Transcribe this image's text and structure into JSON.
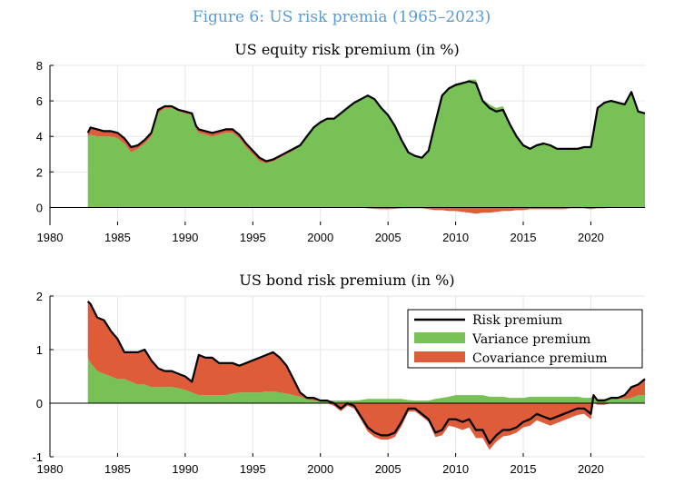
{
  "figure": {
    "title": "Figure 6: US risk premia (1965–2023)"
  },
  "colors": {
    "risk": "#000000",
    "variance": "#77c156",
    "covariance": "#de5c3a",
    "title": "#5b9bd5",
    "grid": "#e6e6e6"
  },
  "chart_data": [
    {
      "type": "area",
      "title": "US equity risk premium (in %)",
      "xlim": [
        1980,
        2024
      ],
      "ylim": [
        -1,
        8
      ],
      "xticks": [
        1980,
        1985,
        1990,
        1995,
        2000,
        2005,
        2010,
        2015,
        2020
      ],
      "xtick_labels": [
        "1980",
        "1985",
        "1990",
        "1995",
        "2000",
        "2005",
        "2010",
        "2015",
        "2020"
      ],
      "yticks": [
        0,
        2,
        4,
        6,
        8
      ],
      "ytick_labels": [
        "0",
        "2",
        "4",
        "6",
        "8"
      ],
      "grid": true,
      "x": [
        1982.8,
        1983,
        1983.5,
        1984,
        1984.5,
        1985,
        1985.5,
        1986,
        1986.5,
        1987,
        1987.5,
        1988,
        1988.5,
        1989,
        1989.5,
        1990,
        1990.5,
        1990.8,
        1991,
        1991.5,
        1992,
        1992.5,
        1993,
        1993.5,
        1994,
        1994.5,
        1995,
        1995.5,
        1996,
        1996.5,
        1997,
        1997.5,
        1998,
        1998.5,
        1999,
        1999.5,
        2000,
        2000.5,
        2001,
        2001.5,
        2002,
        2002.5,
        2003,
        2003.5,
        2004,
        2004.5,
        2005,
        2005.5,
        2006,
        2006.5,
        2007,
        2007.5,
        2008,
        2008.5,
        2009,
        2009.5,
        2010,
        2010.5,
        2011,
        2011.5,
        2012,
        2012.5,
        2013,
        2013.5,
        2014,
        2014.5,
        2015,
        2015.5,
        2016,
        2016.5,
        2017,
        2017.5,
        2018,
        2018.5,
        2019,
        2019.5,
        2020,
        2020.5,
        2021,
        2021.5,
        2022,
        2022.5,
        2023,
        2023.5,
        2024
      ],
      "series": [
        {
          "name": "Risk premium",
          "values": [
            4.2,
            4.5,
            4.4,
            4.3,
            4.3,
            4.2,
            3.9,
            3.4,
            3.5,
            3.8,
            4.2,
            5.5,
            5.7,
            5.7,
            5.5,
            5.4,
            5.3,
            4.6,
            4.4,
            4.3,
            4.2,
            4.3,
            4.4,
            4.4,
            4.1,
            3.6,
            3.2,
            2.8,
            2.6,
            2.7,
            2.9,
            3.1,
            3.3,
            3.5,
            4.0,
            4.5,
            4.8,
            5.0,
            5.0,
            5.3,
            5.6,
            5.9,
            6.1,
            6.3,
            6.1,
            5.6,
            5.2,
            4.6,
            3.8,
            3.1,
            2.9,
            2.8,
            3.2,
            4.8,
            6.3,
            6.7,
            6.9,
            7.0,
            7.1,
            7.0,
            6.0,
            5.6,
            5.4,
            5.5,
            4.7,
            4.0,
            3.5,
            3.3,
            3.5,
            3.6,
            3.5,
            3.3,
            3.3,
            3.3,
            3.3,
            3.4,
            3.4,
            5.6,
            5.9,
            6.0,
            5.9,
            5.8,
            6.5,
            5.4,
            5.3
          ]
        },
        {
          "name": "Variance premium",
          "values": [
            4.0,
            4.1,
            4.0,
            4.0,
            4.0,
            3.9,
            3.6,
            3.1,
            3.3,
            3.6,
            4.0,
            5.3,
            5.6,
            5.6,
            5.4,
            5.3,
            5.2,
            4.4,
            4.2,
            4.1,
            4.0,
            4.1,
            4.2,
            4.2,
            3.9,
            3.4,
            3.0,
            2.6,
            2.5,
            2.6,
            2.8,
            3.0,
            3.2,
            3.5,
            4.0,
            4.5,
            4.8,
            5.0,
            5.0,
            5.3,
            5.6,
            5.9,
            6.1,
            6.3,
            6.1,
            5.6,
            5.2,
            4.6,
            3.8,
            3.1,
            2.9,
            2.8,
            3.2,
            4.8,
            6.3,
            6.7,
            6.9,
            7.0,
            7.2,
            7.2,
            6.1,
            5.8,
            5.6,
            5.7,
            4.8,
            4.1,
            3.5,
            3.3,
            3.5,
            3.6,
            3.5,
            3.3,
            3.3,
            3.3,
            3.3,
            3.4,
            3.4,
            5.6,
            5.9,
            6.0,
            5.9,
            5.8,
            6.5,
            5.4,
            5.3
          ]
        },
        {
          "name": "Covariance premium",
          "values": [
            0.2,
            0.4,
            0.4,
            0.3,
            0.3,
            0.3,
            0.3,
            0.3,
            0.2,
            0.2,
            0.2,
            0.2,
            0.1,
            0.1,
            0.1,
            0.1,
            0.1,
            0.2,
            0.2,
            0.2,
            0.2,
            0.2,
            0.2,
            0.2,
            0.2,
            0.2,
            0.2,
            0.2,
            0.1,
            0.1,
            0.1,
            0.1,
            0.1,
            0.0,
            0.0,
            0.0,
            0.0,
            0.0,
            0.0,
            0.0,
            0.0,
            0.0,
            -0.02,
            -0.05,
            -0.08,
            -0.1,
            -0.1,
            -0.08,
            -0.05,
            -0.05,
            -0.05,
            -0.05,
            -0.1,
            -0.15,
            -0.15,
            -0.2,
            -0.2,
            -0.25,
            -0.3,
            -0.35,
            -0.3,
            -0.3,
            -0.25,
            -0.2,
            -0.2,
            -0.15,
            -0.15,
            -0.1,
            -0.1,
            -0.1,
            -0.1,
            -0.1,
            -0.1,
            -0.05,
            -0.05,
            -0.05,
            -0.1,
            -0.05,
            -0.05,
            0.0,
            0.0,
            0.0,
            0.0,
            0.0,
            0.0
          ]
        }
      ]
    },
    {
      "type": "area",
      "title": "US bond risk premium (in %)",
      "xlim": [
        1980,
        2024
      ],
      "ylim": [
        -1,
        2
      ],
      "xticks": [
        1980,
        1985,
        1990,
        1995,
        2000,
        2005,
        2010,
        2015,
        2020
      ],
      "xtick_labels": [
        "1980",
        "1985",
        "1990",
        "1995",
        "2000",
        "2005",
        "2010",
        "2015",
        "2020"
      ],
      "yticks": [
        -1,
        0,
        1,
        2
      ],
      "ytick_labels": [
        "-1",
        "0",
        "1",
        "2"
      ],
      "grid": true,
      "legend_position": "top-right",
      "legend": [
        "Risk premium",
        "Variance premium",
        "Covariance premium"
      ],
      "x": [
        1982.8,
        1983,
        1983.5,
        1984,
        1984.5,
        1985,
        1985.5,
        1986,
        1986.5,
        1987,
        1987.5,
        1988,
        1988.5,
        1989,
        1989.5,
        1990,
        1990.5,
        1991,
        1991.5,
        1992,
        1992.5,
        1993,
        1993.5,
        1994,
        1994.5,
        1995,
        1995.5,
        1996,
        1996.5,
        1997,
        1997.5,
        1998,
        1998.5,
        1999,
        1999.5,
        2000,
        2000.5,
        2001,
        2001.5,
        2002,
        2002.5,
        2003,
        2003.5,
        2004,
        2004.5,
        2005,
        2005.5,
        2006,
        2006.5,
        2007,
        2007.5,
        2008,
        2008.5,
        2009,
        2009.5,
        2010,
        2010.5,
        2011,
        2011.5,
        2012,
        2012.5,
        2013,
        2013.5,
        2014,
        2014.5,
        2015,
        2015.5,
        2016,
        2016.5,
        2017,
        2017.5,
        2018,
        2018.5,
        2019,
        2019.5,
        2020,
        2020.2,
        2020.5,
        2021,
        2021.5,
        2022,
        2022.5,
        2023,
        2023.5,
        2024
      ],
      "series": [
        {
          "name": "Risk premium",
          "values": [
            1.9,
            1.85,
            1.6,
            1.55,
            1.35,
            1.2,
            0.95,
            0.95,
            0.95,
            1.0,
            0.8,
            0.65,
            0.6,
            0.6,
            0.55,
            0.5,
            0.4,
            0.9,
            0.85,
            0.85,
            0.75,
            0.75,
            0.75,
            0.7,
            0.75,
            0.8,
            0.85,
            0.9,
            0.95,
            0.85,
            0.7,
            0.45,
            0.2,
            0.1,
            0.1,
            0.05,
            0.05,
            0.0,
            -0.1,
            0.0,
            -0.05,
            -0.25,
            -0.45,
            -0.55,
            -0.6,
            -0.6,
            -0.55,
            -0.35,
            -0.1,
            -0.1,
            -0.2,
            -0.3,
            -0.55,
            -0.5,
            -0.3,
            -0.3,
            -0.35,
            -0.3,
            -0.5,
            -0.5,
            -0.75,
            -0.6,
            -0.5,
            -0.5,
            -0.45,
            -0.35,
            -0.3,
            -0.2,
            -0.25,
            -0.3,
            -0.25,
            -0.2,
            -0.15,
            -0.1,
            -0.1,
            -0.2,
            0.15,
            0.05,
            0.05,
            0.1,
            0.1,
            0.15,
            0.3,
            0.35,
            0.45
          ]
        },
        {
          "name": "Variance premium",
          "values": [
            0.85,
            0.75,
            0.6,
            0.55,
            0.5,
            0.45,
            0.45,
            0.4,
            0.35,
            0.35,
            0.3,
            0.3,
            0.3,
            0.3,
            0.28,
            0.25,
            0.2,
            0.15,
            0.15,
            0.15,
            0.15,
            0.15,
            0.18,
            0.2,
            0.2,
            0.2,
            0.2,
            0.22,
            0.22,
            0.2,
            0.18,
            0.15,
            0.12,
            0.08,
            0.05,
            0.05,
            0.05,
            0.05,
            0.05,
            0.05,
            0.05,
            0.06,
            0.08,
            0.08,
            0.08,
            0.08,
            0.08,
            0.08,
            0.06,
            0.05,
            0.05,
            0.05,
            0.08,
            0.1,
            0.12,
            0.15,
            0.15,
            0.15,
            0.15,
            0.15,
            0.12,
            0.12,
            0.12,
            0.1,
            0.1,
            0.1,
            0.12,
            0.12,
            0.12,
            0.12,
            0.12,
            0.12,
            0.12,
            0.12,
            0.1,
            0.1,
            0.08,
            0.08,
            0.08,
            0.08,
            0.08,
            0.08,
            0.1,
            0.15,
            0.15
          ]
        },
        {
          "name": "Covariance premium",
          "values": [
            1.05,
            1.1,
            1.0,
            1.0,
            0.85,
            0.75,
            0.5,
            0.55,
            0.6,
            0.65,
            0.5,
            0.35,
            0.3,
            0.3,
            0.27,
            0.25,
            0.2,
            0.75,
            0.7,
            0.7,
            0.6,
            0.6,
            0.57,
            0.5,
            0.55,
            0.6,
            0.65,
            0.68,
            0.73,
            0.65,
            0.52,
            0.3,
            0.08,
            0.02,
            0.05,
            0.0,
            0.0,
            -0.05,
            -0.15,
            -0.05,
            -0.1,
            -0.31,
            -0.53,
            -0.63,
            -0.68,
            -0.68,
            -0.63,
            -0.43,
            -0.16,
            -0.15,
            -0.25,
            -0.35,
            -0.63,
            -0.6,
            -0.42,
            -0.45,
            -0.5,
            -0.45,
            -0.65,
            -0.65,
            -0.87,
            -0.72,
            -0.62,
            -0.6,
            -0.55,
            -0.45,
            -0.42,
            -0.32,
            -0.37,
            -0.42,
            -0.37,
            -0.32,
            -0.27,
            -0.22,
            -0.2,
            -0.3,
            0.07,
            -0.03,
            -0.03,
            0.02,
            0.02,
            0.07,
            0.2,
            0.2,
            0.3
          ]
        }
      ]
    }
  ]
}
